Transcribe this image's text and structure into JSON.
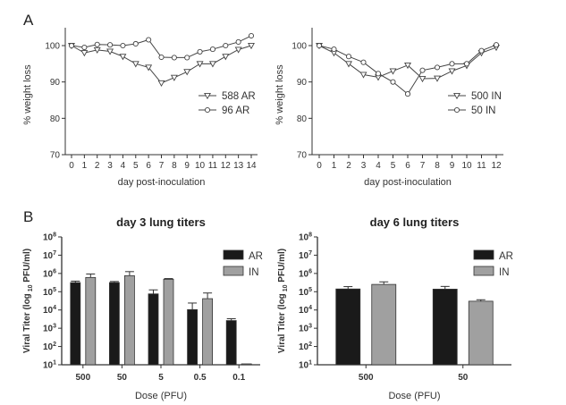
{
  "panels": {
    "A_label": "A",
    "B_label": "B"
  },
  "chart_data": [
    {
      "id": "A-left",
      "type": "line",
      "title": "",
      "xlabel": "day post-inoculation",
      "ylabel": "% weight loss",
      "xlim": [
        0,
        14
      ],
      "ylim": [
        70,
        105
      ],
      "yticks": [
        70,
        80,
        90,
        100
      ],
      "xticks": [
        0,
        1,
        2,
        3,
        4,
        5,
        6,
        7,
        8,
        9,
        10,
        11,
        12,
        13,
        14
      ],
      "legend_position": "right",
      "series": [
        {
          "name": "588 AR",
          "marker": "triangle-down",
          "x": [
            0,
            1,
            2,
            3,
            4,
            5,
            6,
            7,
            8,
            9,
            10,
            11,
            12,
            13,
            14
          ],
          "y": [
            100,
            98,
            98.8,
            98.4,
            97,
            95,
            94,
            89.7,
            91.2,
            92.8,
            95,
            95,
            97,
            98.9,
            100
          ]
        },
        {
          "name": "96 AR",
          "marker": "circle",
          "x": [
            0,
            1,
            2,
            3,
            4,
            5,
            6,
            7,
            8,
            9,
            10,
            11,
            12,
            13,
            14
          ],
          "y": [
            100,
            99.5,
            100.3,
            100.2,
            100,
            100.5,
            101.6,
            96.8,
            96.7,
            96.7,
            98.3,
            99,
            100,
            101,
            102.7
          ]
        }
      ]
    },
    {
      "id": "A-right",
      "type": "line",
      "title": "",
      "xlabel": "day post-inoculation",
      "ylabel": "% weight loss",
      "xlim": [
        0,
        12
      ],
      "ylim": [
        70,
        105
      ],
      "yticks": [
        70,
        80,
        90,
        100
      ],
      "xticks": [
        0,
        1,
        2,
        3,
        4,
        5,
        6,
        7,
        8,
        9,
        10,
        11,
        12
      ],
      "legend_position": "right",
      "series": [
        {
          "name": "500 IN",
          "marker": "triangle-down",
          "x": [
            0,
            1,
            2,
            3,
            4,
            5,
            6,
            7,
            8,
            9,
            10,
            11,
            12
          ],
          "y": [
            100,
            98,
            95,
            92,
            91.3,
            93,
            94.6,
            90.9,
            91,
            93,
            94.5,
            98,
            99.5
          ]
        },
        {
          "name": "50 IN",
          "marker": "circle",
          "x": [
            0,
            1,
            2,
            3,
            4,
            5,
            6,
            7,
            8,
            9,
            10,
            11,
            12
          ],
          "y": [
            100,
            99,
            97,
            95.4,
            92.3,
            90,
            86.7,
            93.2,
            94,
            95,
            95,
            98.6,
            100.2
          ]
        }
      ]
    },
    {
      "id": "B-left",
      "type": "bar",
      "title": "day 3 lung titers",
      "xlabel": "Dose  (PFU)",
      "ylabel": "Viral Titer (log10 PFU/ml)",
      "ylabel_parts": [
        "Viral Titer (log",
        "10",
        " PFU/ml)"
      ],
      "yscale": "log",
      "ylim_log10": [
        1,
        8
      ],
      "ytick_exponents": [
        1,
        2,
        3,
        4,
        5,
        6,
        7,
        8
      ],
      "categories": [
        "500",
        "50",
        "5",
        "0.5",
        "0.1"
      ],
      "legend_position": "top-right",
      "series": [
        {
          "name": "AR",
          "color": "#1a1a1a",
          "log10_values": [
            5.5,
            5.5,
            4.88,
            4.02,
            3.42
          ],
          "log10_error_top": [
            5.58,
            5.56,
            5.1,
            4.38,
            3.52
          ]
        },
        {
          "name": "IN",
          "color": "#a0a0a0",
          "log10_values": [
            5.78,
            5.88,
            5.68,
            4.62,
            1.05
          ],
          "log10_error_top": [
            5.97,
            6.1,
            5.72,
            4.93,
            1.05
          ]
        }
      ]
    },
    {
      "id": "B-right",
      "type": "bar",
      "title": "day 6 lung titers",
      "xlabel": "Dose  (PFU)",
      "ylabel": "Viral Titer (log10 PFU/ml)",
      "ylabel_parts": [
        "Viral Titer (log",
        "10",
        " PFU/ml)"
      ],
      "yscale": "log",
      "ylim_log10": [
        1,
        8
      ],
      "ytick_exponents": [
        1,
        2,
        3,
        4,
        5,
        6,
        7,
        8
      ],
      "categories": [
        "500",
        "50"
      ],
      "legend_position": "top-right",
      "series": [
        {
          "name": "AR",
          "color": "#1a1a1a",
          "log10_values": [
            5.15,
            5.14
          ],
          "log10_error_top": [
            5.28,
            5.29
          ]
        },
        {
          "name": "IN",
          "color": "#a0a0a0",
          "log10_values": [
            5.4,
            4.48
          ],
          "log10_error_top": [
            5.54,
            4.56
          ]
        }
      ]
    }
  ]
}
